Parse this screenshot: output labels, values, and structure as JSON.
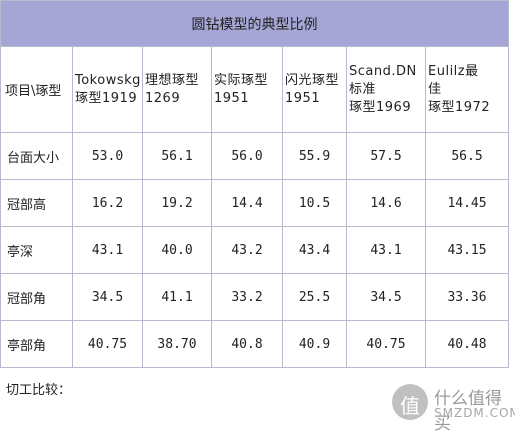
{
  "table": {
    "title": "圆钻模型的典型比例",
    "row_header_label": "项目\\琢型",
    "columns": [
      {
        "line1": "Tokowskg",
        "line2": "琢型1919"
      },
      {
        "line1": "理想琢型",
        "line2": "1269"
      },
      {
        "line1": "实际琢型",
        "line2": "1951"
      },
      {
        "line1": "闪光琢型",
        "line2": "1951"
      },
      {
        "line1": "Scand.DN",
        "line2": "标准",
        "line3": "琢型1969"
      },
      {
        "line1": "Eulilz最",
        "line2": "佳",
        "line3": "琢型1972"
      }
    ],
    "rows": [
      {
        "label": "台面大小",
        "values": [
          "53.0",
          "56.1",
          "56.0",
          "55.9",
          "57.5",
          "56.5"
        ]
      },
      {
        "label": "冠部高",
        "values": [
          "16.2",
          "19.2",
          "14.4",
          "10.5",
          "14.6",
          "14.45"
        ]
      },
      {
        "label": "亭深",
        "values": [
          "43.1",
          "40.0",
          "43.2",
          "43.4",
          "43.1",
          "43.15"
        ]
      },
      {
        "label": "冠部角",
        "values": [
          "34.5",
          "41.1",
          "33.2",
          "25.5",
          "34.5",
          "33.36"
        ]
      },
      {
        "label": "亭部角",
        "values": [
          "40.75",
          "38.70",
          "40.8",
          "40.9",
          "40.75",
          "40.48"
        ]
      }
    ]
  },
  "caption": "切工比较：",
  "watermark": {
    "glyph": "值",
    "text": "什么值得买",
    "sub": "SMZDM.COM"
  },
  "colors": {
    "title_bg": "#a6a6d6",
    "border": "#b9b9cf"
  }
}
